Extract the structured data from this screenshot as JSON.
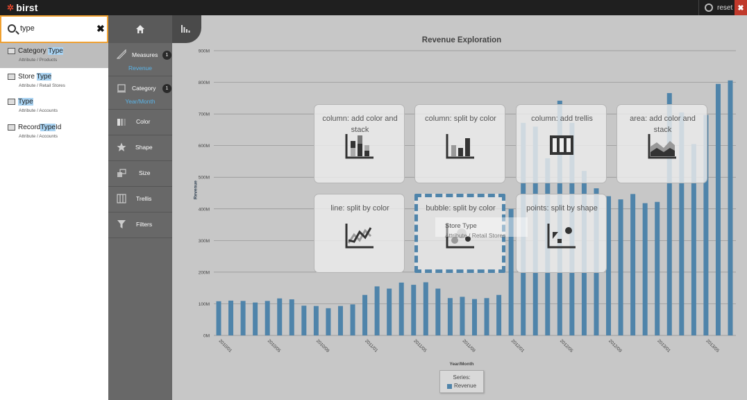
{
  "app": {
    "logo": "birst",
    "reset_label": "reset",
    "close_label": "✖"
  },
  "search": {
    "value": "type",
    "placeholder": ""
  },
  "results": [
    {
      "title_pre": "Category ",
      "title_hl": "Type",
      "title_post": "",
      "subtitle": "Attribute / Products",
      "selected": true
    },
    {
      "title_pre": "Store ",
      "title_hl": "Type",
      "title_post": "",
      "subtitle": "Attribute / Retail Stores",
      "selected": false
    },
    {
      "title_pre": "",
      "title_hl": "Type",
      "title_post": "",
      "subtitle": "Attribute / Accounts",
      "selected": false
    },
    {
      "title_pre": "Record",
      "title_hl": "Type",
      "title_post": "Id",
      "subtitle": "Attribute / Accounts",
      "selected": false
    }
  ],
  "shelves": {
    "measures": {
      "label": "Measures",
      "count": "1",
      "value": "Revenue"
    },
    "category": {
      "label": "Category",
      "count": "1",
      "value": "Year/Month"
    },
    "color": {
      "label": "Color"
    },
    "shape": {
      "label": "Shape"
    },
    "size": {
      "label": "Size"
    },
    "trellis": {
      "label": "Trellis"
    },
    "filters": {
      "label": "Filters"
    }
  },
  "suggestions": [
    {
      "label": "column: add color and stack",
      "icon": "stacked-column-icon"
    },
    {
      "label": "column: split by color",
      "icon": "split-column-icon"
    },
    {
      "label": "column: add trellis",
      "icon": "trellis-icon"
    },
    {
      "label": "area: add color and stack",
      "icon": "stacked-area-icon"
    },
    {
      "label": "line: split by color",
      "icon": "line-split-icon"
    },
    {
      "label": "bubble: split by color",
      "icon": "bubble-icon"
    },
    {
      "label": "points: split by shape",
      "icon": "points-shape-icon"
    }
  ],
  "drag_item": {
    "title": "Store Type",
    "subtitle": "Attribute / Retail Stores"
  },
  "colors": {
    "bar": "#4f84aa",
    "accent": "#5ab4e8",
    "search_border": "#f0a030",
    "close": "#c0392b"
  },
  "chart_data": {
    "type": "bar",
    "title": "Revenue Exploration",
    "xlabel": "Year/Month",
    "ylabel": "Revenue",
    "ylim": [
      0,
      900
    ],
    "yticks": [
      "0M",
      "100M",
      "200M",
      "300M",
      "400M",
      "500M",
      "600M",
      "700M",
      "800M",
      "900M"
    ],
    "xtick_labels": [
      "2010/01",
      "2010/05",
      "2010/09",
      "2011/01",
      "2011/05",
      "2011/09",
      "2012/01",
      "2012/05",
      "2012/09",
      "2013/01",
      "2013/05"
    ],
    "legend_title": "Series:",
    "series": [
      {
        "name": "Revenue",
        "values": [
          108,
          110,
          109,
          104,
          109,
          117,
          114,
          94,
          93,
          86,
          93,
          98,
          128,
          155,
          148,
          167,
          160,
          168,
          148,
          118,
          122,
          115,
          118,
          128,
          400,
          672,
          660,
          560,
          742,
          672,
          520,
          465,
          440,
          430,
          447,
          418,
          422,
          766,
          705,
          605,
          697,
          795,
          806
        ]
      }
    ]
  }
}
